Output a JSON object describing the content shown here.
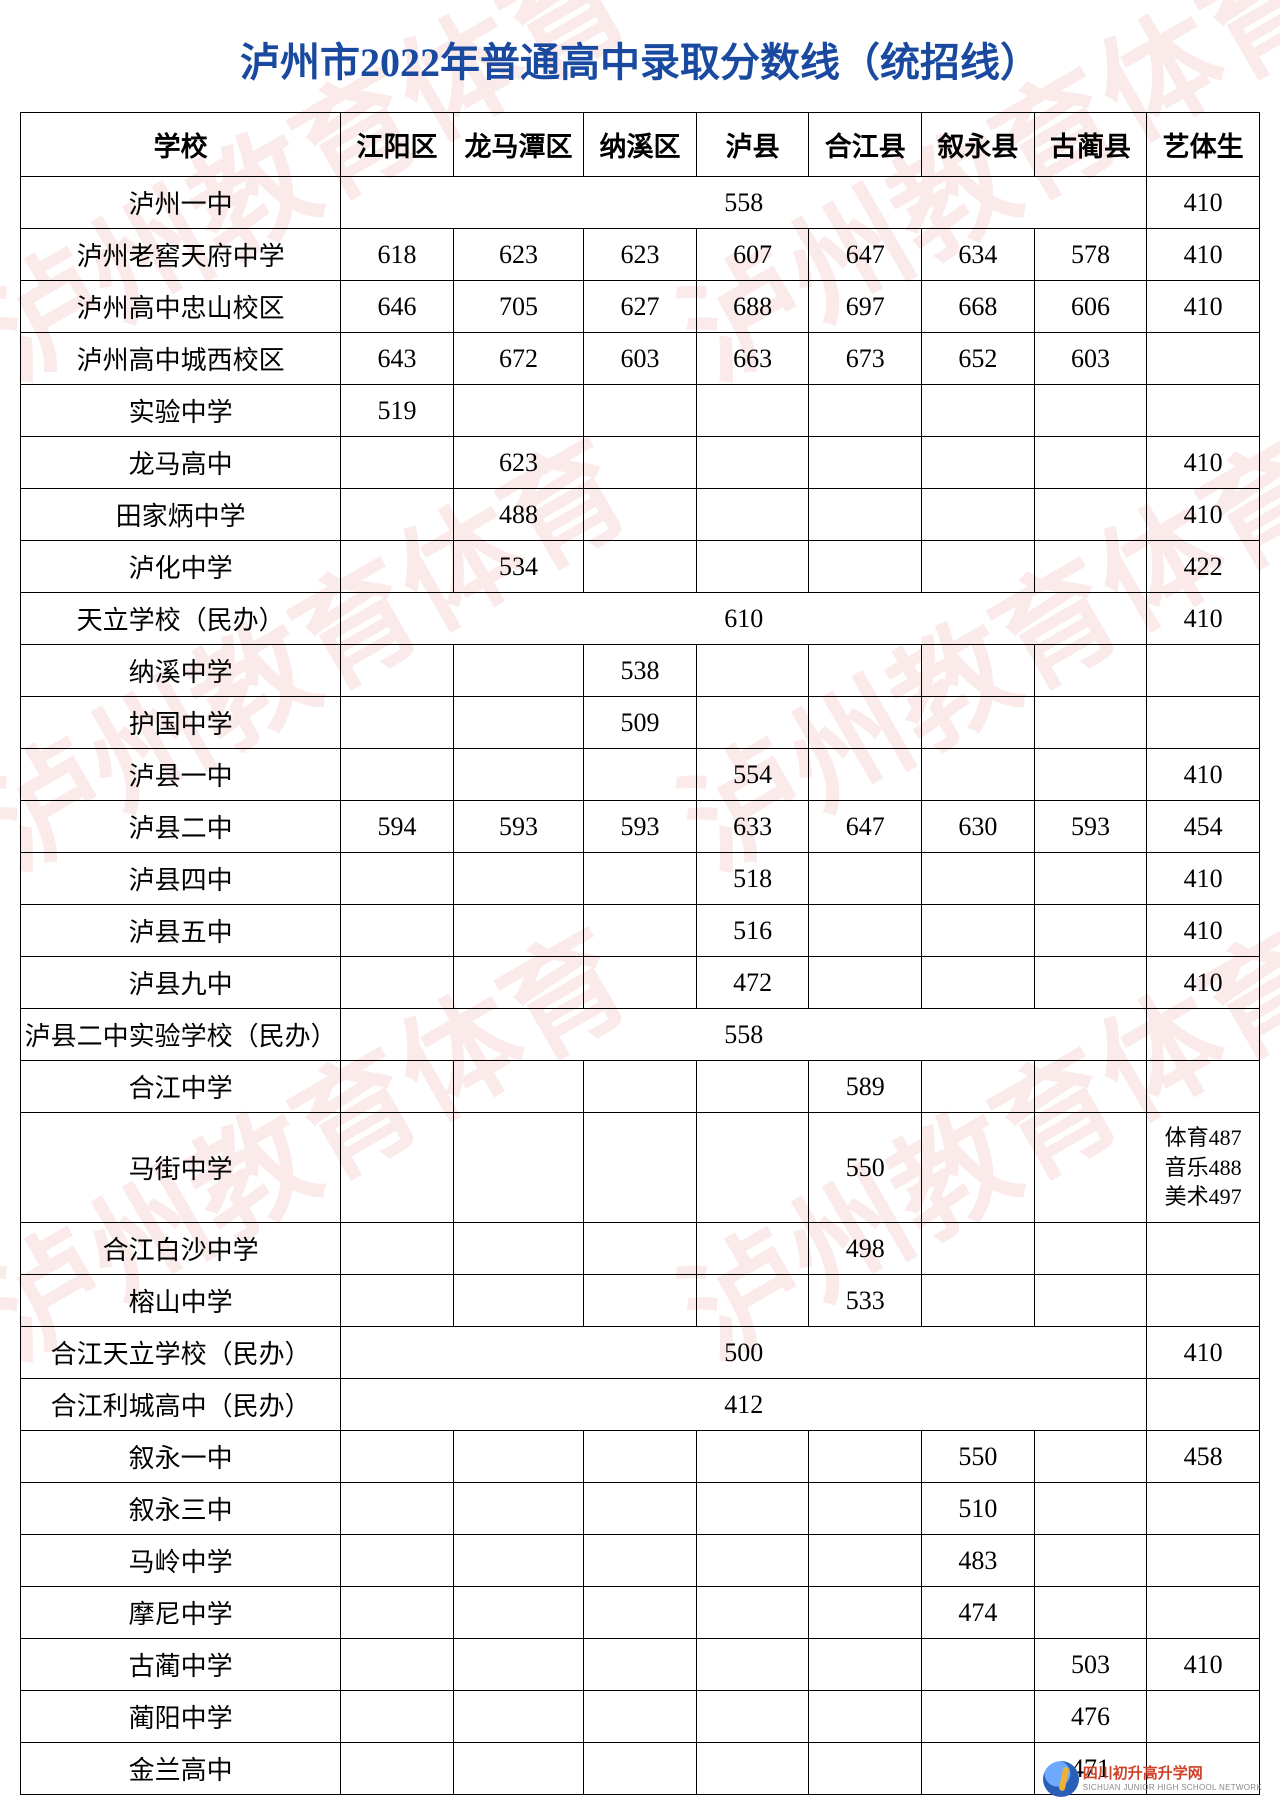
{
  "title": "泸州市2022年普通高中录取分数线（统招线）",
  "watermark_text": "泸州教育体育",
  "watermark_color": "rgba(216,80,80,0.12)",
  "title_color": "#1a4aa0",
  "columns": [
    "学校",
    "江阳区",
    "龙马潭区",
    "纳溪区",
    "泸县",
    "合江县",
    "叙永县",
    "古蔺县",
    "艺体生"
  ],
  "rows": [
    {
      "school": "泸州一中",
      "merged": "558",
      "art": "410"
    },
    {
      "school": "泸州老窖天府中学",
      "d": [
        "618",
        "623",
        "623",
        "607",
        "647",
        "634",
        "578"
      ],
      "art": "410"
    },
    {
      "school": "泸州高中忠山校区",
      "d": [
        "646",
        "705",
        "627",
        "688",
        "697",
        "668",
        "606"
      ],
      "art": "410"
    },
    {
      "school": "泸州高中城西校区",
      "d": [
        "643",
        "672",
        "603",
        "663",
        "673",
        "652",
        "603"
      ],
      "art": ""
    },
    {
      "school": "实验中学",
      "d": [
        "519",
        "",
        "",
        "",
        "",
        "",
        ""
      ],
      "art": ""
    },
    {
      "school": "龙马高中",
      "d": [
        "",
        "623",
        "",
        "",
        "",
        "",
        ""
      ],
      "art": "410"
    },
    {
      "school": "田家炳中学",
      "d": [
        "",
        "488",
        "",
        "",
        "",
        "",
        ""
      ],
      "art": "410"
    },
    {
      "school": "泸化中学",
      "d": [
        "",
        "534",
        "",
        "",
        "",
        "",
        ""
      ],
      "art": "422"
    },
    {
      "school": "天立学校（民办）",
      "merged": "610",
      "art": "410"
    },
    {
      "school": "纳溪中学",
      "d": [
        "",
        "",
        "538",
        "",
        "",
        "",
        ""
      ],
      "art": ""
    },
    {
      "school": "护国中学",
      "d": [
        "",
        "",
        "509",
        "",
        "",
        "",
        ""
      ],
      "art": ""
    },
    {
      "school": "泸县一中",
      "d": [
        "",
        "",
        "",
        "554",
        "",
        "",
        ""
      ],
      "art": "410"
    },
    {
      "school": "泸县二中",
      "d": [
        "594",
        "593",
        "593",
        "633",
        "647",
        "630",
        "593"
      ],
      "art": "454"
    },
    {
      "school": "泸县四中",
      "d": [
        "",
        "",
        "",
        "518",
        "",
        "",
        ""
      ],
      "art": "410"
    },
    {
      "school": "泸县五中",
      "d": [
        "",
        "",
        "",
        "516",
        "",
        "",
        ""
      ],
      "art": "410"
    },
    {
      "school": "泸县九中",
      "d": [
        "",
        "",
        "",
        "472",
        "",
        "",
        ""
      ],
      "art": "410"
    },
    {
      "school": "泸县二中实验学校（民办）",
      "merged": "558",
      "art": ""
    },
    {
      "school": "合江中学",
      "d": [
        "",
        "",
        "",
        "",
        "589",
        "",
        ""
      ],
      "art": ""
    },
    {
      "school": "马街中学",
      "d": [
        "",
        "",
        "",
        "",
        "550",
        "",
        ""
      ],
      "art_multi": [
        "体育487",
        "音乐488",
        "美术497"
      ]
    },
    {
      "school": "合江白沙中学",
      "d": [
        "",
        "",
        "",
        "",
        "498",
        "",
        ""
      ],
      "art": ""
    },
    {
      "school": "榕山中学",
      "d": [
        "",
        "",
        "",
        "",
        "533",
        "",
        ""
      ],
      "art": ""
    },
    {
      "school": "合江天立学校（民办）",
      "merged": "500",
      "art": "410"
    },
    {
      "school": "合江利城高中（民办）",
      "merged": "412",
      "art": ""
    },
    {
      "school": "叙永一中",
      "d": [
        "",
        "",
        "",
        "",
        "",
        "550",
        ""
      ],
      "art": "458"
    },
    {
      "school": "叙永三中",
      "d": [
        "",
        "",
        "",
        "",
        "",
        "510",
        ""
      ],
      "art": ""
    },
    {
      "school": "马岭中学",
      "d": [
        "",
        "",
        "",
        "",
        "",
        "483",
        ""
      ],
      "art": ""
    },
    {
      "school": "摩尼中学",
      "d": [
        "",
        "",
        "",
        "",
        "",
        "474",
        ""
      ],
      "art": ""
    },
    {
      "school": "古蔺中学",
      "d": [
        "",
        "",
        "",
        "",
        "",
        "",
        "503"
      ],
      "art": "410"
    },
    {
      "school": "蔺阳中学",
      "d": [
        "",
        "",
        "",
        "",
        "",
        "",
        "476"
      ],
      "art": ""
    },
    {
      "school": "金兰高中",
      "d": [
        "",
        "",
        "",
        "",
        "",
        "",
        "471"
      ],
      "art": ""
    }
  ],
  "logo": {
    "cn": "四川初升高升学网",
    "en": "SICHUAN JUNIOR HIGH SCHOOL NETWORK"
  }
}
